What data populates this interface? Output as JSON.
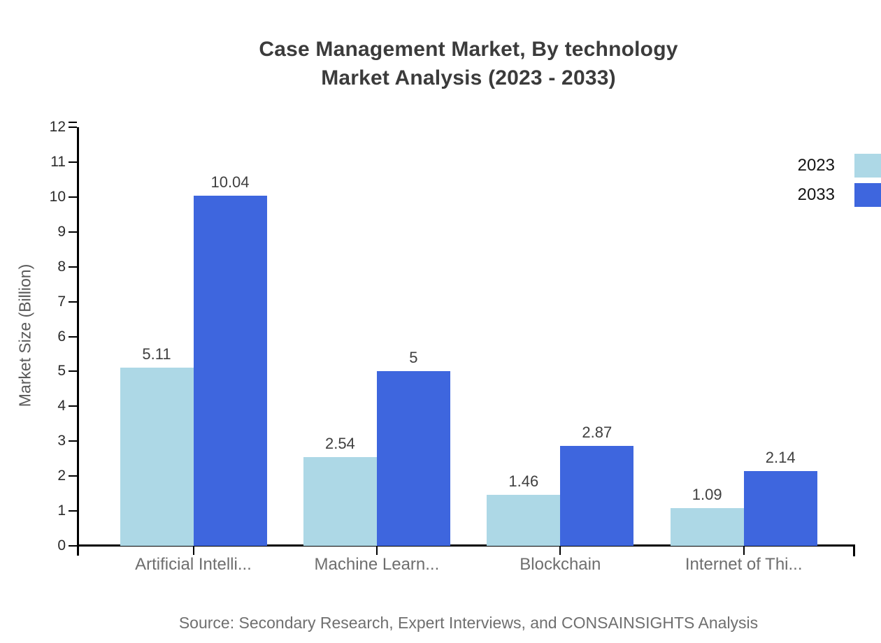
{
  "title": {
    "line1": "Case Management Market, By technology",
    "line2": "Market Analysis (2023 - 2033)"
  },
  "legend": {
    "items": [
      {
        "label": "2023",
        "color": "#ADD8E6"
      },
      {
        "label": "2033",
        "color": "#3E66DE"
      }
    ]
  },
  "source_note": "Source: Secondary Research, Expert Interviews, and CONSAINSIGHTS Analysis",
  "colors": {
    "series_2023": "#ADD8E6",
    "series_2033": "#3E66DE",
    "axis": "#000000",
    "title_text": "#3b3b3b",
    "tick_text": "#2b2b2b",
    "category_text": "#6e6e6e",
    "value_text": "#3f3f3f",
    "ylabel_text": "#595959",
    "source_text": "#6f6f6f",
    "background": "#ffffff"
  },
  "chart_data": {
    "type": "bar",
    "title": "Case Management Market, By technology Market Analysis (2023 - 2033)",
    "categories": [
      "Artificial Intelli...",
      "Machine Learn...",
      "Blockchain",
      "Internet of Thi..."
    ],
    "series": [
      {
        "name": "2023",
        "color": "#ADD8E6",
        "values": [
          5.11,
          2.54,
          1.46,
          1.09
        ],
        "labels": [
          "5.11",
          "2.54",
          "1.46",
          "1.09"
        ]
      },
      {
        "name": "2033",
        "color": "#3E66DE",
        "values": [
          10.04,
          5,
          2.87,
          2.14
        ],
        "labels": [
          "10.04",
          "5",
          "2.87",
          "2.14"
        ]
      }
    ],
    "xlabel": "",
    "ylabel": "Market Size (Billion)",
    "ylim": [
      0,
      12
    ],
    "ytick_step": 1,
    "grid": false,
    "legend_position": "top-right",
    "bar_value_labels": true
  }
}
